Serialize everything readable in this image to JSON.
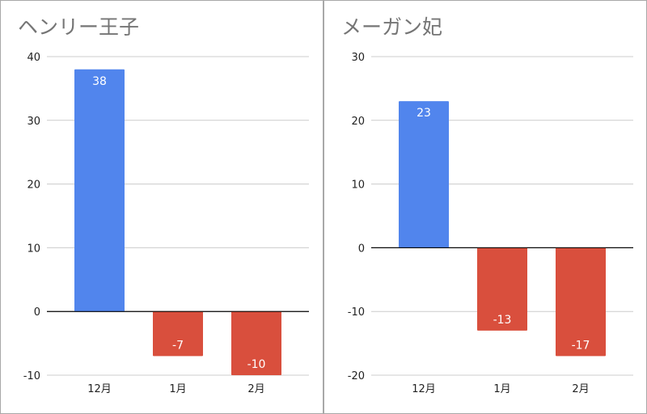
{
  "colors": {
    "positive": "#5185ed",
    "negative": "#d94f3d",
    "grid": "#cccccc",
    "zero_line": "#000000"
  },
  "chart_data": [
    {
      "type": "bar",
      "title": "ヘンリー王子",
      "categories": [
        "12月",
        "1月",
        "2月"
      ],
      "series": [
        {
          "values": [
            38,
            -7,
            -10
          ]
        }
      ],
      "data_labels": [
        "38",
        "-7",
        "-10"
      ],
      "ylim": [
        -10,
        40
      ],
      "yticks": [
        40,
        30,
        20,
        10,
        0,
        -10
      ],
      "ytick_labels": [
        "40",
        "30",
        "20",
        "10",
        "0",
        "-10"
      ],
      "grid": true,
      "legend": "none"
    },
    {
      "type": "bar",
      "title": "メーガン妃",
      "categories": [
        "12月",
        "1月",
        "2月"
      ],
      "series": [
        {
          "values": [
            23,
            -13,
            -17
          ]
        }
      ],
      "data_labels": [
        "23",
        "-13",
        "-17"
      ],
      "ylim": [
        -20,
        30
      ],
      "yticks": [
        30,
        20,
        10,
        0,
        -10,
        -20
      ],
      "ytick_labels": [
        "30",
        "20",
        "10",
        "0",
        "-10",
        "-20"
      ],
      "grid": true,
      "legend": "none"
    }
  ]
}
